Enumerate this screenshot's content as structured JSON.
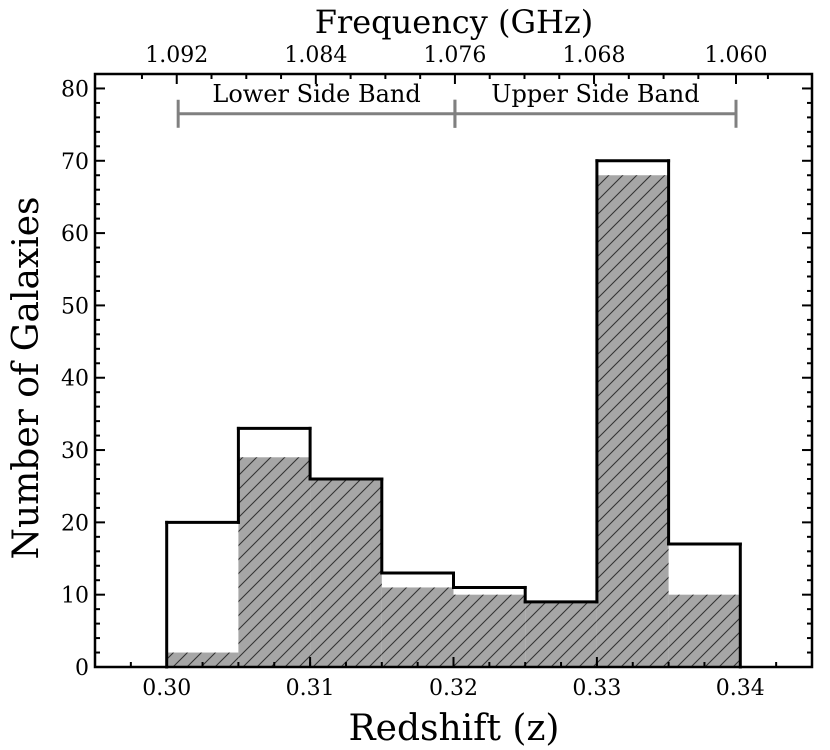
{
  "chart_data": {
    "type": "bar",
    "xlabel": "Redshift (z)",
    "ylabel": "Number of Galaxies",
    "top_axis_label": "Frequency (GHz)",
    "xlim": [
      0.295,
      0.345
    ],
    "ylim": [
      0,
      82
    ],
    "x_ticks": [
      {
        "value": 0.3,
        "label": "0.30"
      },
      {
        "value": 0.31,
        "label": "0.31"
      },
      {
        "value": 0.32,
        "label": "0.32"
      },
      {
        "value": 0.33,
        "label": "0.33"
      },
      {
        "value": 0.34,
        "label": "0.34"
      }
    ],
    "y_ticks": [
      {
        "value": 0,
        "label": "0"
      },
      {
        "value": 10,
        "label": "10"
      },
      {
        "value": 20,
        "label": "20"
      },
      {
        "value": 30,
        "label": "30"
      },
      {
        "value": 40,
        "label": "40"
      },
      {
        "value": 50,
        "label": "50"
      },
      {
        "value": 60,
        "label": "60"
      },
      {
        "value": 70,
        "label": "70"
      },
      {
        "value": 80,
        "label": "80"
      }
    ],
    "top_ticks": [
      {
        "z": 0.3007,
        "label": "1.092"
      },
      {
        "z": 0.3104,
        "label": "1.084"
      },
      {
        "z": 0.3201,
        "label": "1.076"
      },
      {
        "z": 0.3298,
        "label": "1.068"
      },
      {
        "z": 0.3397,
        "label": "1.060"
      }
    ],
    "bin_edges": [
      0.3,
      0.305,
      0.31,
      0.315,
      0.32,
      0.325,
      0.33,
      0.335,
      0.34
    ],
    "series": [
      {
        "role": "outline",
        "values": [
          20,
          33,
          26,
          13,
          11,
          9,
          70,
          17
        ]
      },
      {
        "role": "hatched",
        "values": [
          2,
          29,
          26,
          11,
          10,
          9,
          68,
          10
        ]
      }
    ],
    "bands": [
      {
        "label": "Lower Side Band",
        "z_start": 0.3008,
        "z_end": 0.3201
      },
      {
        "label": "Upper Side Band",
        "z_start": 0.3201,
        "z_end": 0.3397
      }
    ],
    "band_y": 76.5,
    "colors": {
      "fill": "#a6a6a6",
      "hatch": "#333333",
      "outline": "#000000",
      "band": "#808080"
    }
  }
}
